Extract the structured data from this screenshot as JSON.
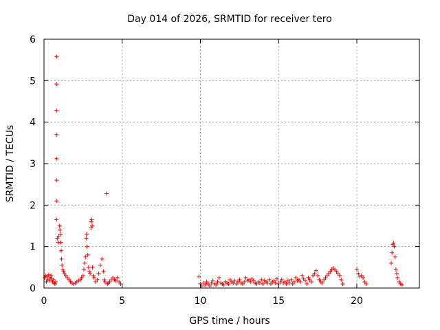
{
  "chart_data": {
    "type": "scatter",
    "title": "Day 014 of 2026, SRMTID for receiver tero",
    "xlabel": "GPS time / hours",
    "ylabel": "SRMTID / TECUs",
    "xlim": [
      0,
      24
    ],
    "ylim": [
      0,
      6
    ],
    "xticks": [
      0,
      5,
      10,
      15,
      20
    ],
    "xtick_labels": [
      "0",
      "5",
      "10",
      "15",
      "20"
    ],
    "yticks": [
      0,
      1,
      2,
      3,
      4,
      5,
      6
    ],
    "ytick_labels": [
      "0",
      "1",
      "2",
      "3",
      "4",
      "5",
      "6"
    ],
    "grid": true,
    "marker": "plus",
    "color": "#ff0000",
    "series": [
      {
        "name": "SRMTID",
        "x": [
          0.05,
          0.1,
          0.15,
          0.2,
          0.25,
          0.3,
          0.35,
          0.4,
          0.45,
          0.5,
          0.55,
          0.6,
          0.65,
          0.7,
          0.75,
          0.8,
          0.8,
          0.8,
          0.8,
          0.8,
          0.8,
          0.8,
          0.8,
          0.85,
          0.9,
          0.95,
          1.0,
          1.02,
          1.05,
          1.08,
          1.1,
          1.12,
          1.15,
          1.2,
          1.25,
          1.3,
          1.4,
          1.5,
          1.6,
          1.7,
          1.8,
          1.9,
          2.0,
          2.1,
          2.2,
          2.3,
          2.4,
          2.5,
          2.55,
          2.6,
          2.65,
          2.7,
          2.72,
          2.75,
          2.8,
          2.85,
          2.9,
          2.95,
          3.0,
          3.02,
          3.05,
          3.08,
          3.1,
          3.15,
          3.2,
          3.3,
          3.4,
          3.5,
          3.6,
          3.7,
          3.8,
          3.85,
          3.9,
          4.0,
          4.05,
          4.1,
          4.2,
          4.3,
          4.4,
          4.5,
          4.6,
          4.7,
          4.8,
          4.9,
          9.9,
          10.0,
          10.1,
          10.2,
          10.3,
          10.4,
          10.5,
          10.6,
          10.7,
          10.8,
          10.9,
          11.0,
          11.1,
          11.2,
          11.3,
          11.4,
          11.5,
          11.6,
          11.7,
          11.8,
          11.9,
          12.0,
          12.1,
          12.2,
          12.3,
          12.4,
          12.5,
          12.6,
          12.7,
          12.8,
          12.9,
          13.0,
          13.1,
          13.2,
          13.3,
          13.4,
          13.5,
          13.6,
          13.7,
          13.8,
          13.9,
          14.0,
          14.1,
          14.2,
          14.3,
          14.4,
          14.5,
          14.6,
          14.7,
          14.8,
          14.9,
          15.0,
          15.1,
          15.2,
          15.3,
          15.4,
          15.5,
          15.6,
          15.7,
          15.8,
          15.9,
          16.0,
          16.1,
          16.2,
          16.3,
          16.4,
          16.5,
          16.6,
          16.7,
          16.8,
          16.9,
          17.0,
          17.1,
          17.2,
          17.3,
          17.4,
          17.5,
          17.6,
          17.7,
          17.8,
          17.9,
          18.0,
          18.1,
          18.2,
          18.3,
          18.4,
          18.5,
          18.6,
          18.7,
          18.8,
          18.9,
          19.0,
          19.1,
          20.0,
          20.1,
          20.2,
          20.3,
          20.4,
          20.5,
          20.6,
          22.2,
          22.25,
          22.3,
          22.35,
          22.4,
          22.45,
          22.5,
          22.55,
          22.6,
          22.7,
          22.8,
          22.9
        ],
        "y": [
          0.25,
          0.3,
          0.15,
          0.28,
          0.2,
          0.32,
          0.18,
          0.25,
          0.3,
          0.22,
          0.15,
          0.2,
          0.12,
          0.1,
          0.15,
          5.58,
          4.92,
          4.28,
          3.7,
          3.12,
          2.6,
          2.1,
          1.65,
          1.2,
          1.1,
          1.25,
          1.5,
          1.4,
          1.3,
          1.1,
          0.9,
          0.7,
          0.55,
          0.45,
          0.4,
          0.35,
          0.3,
          0.25,
          0.2,
          0.15,
          0.12,
          0.1,
          0.12,
          0.15,
          0.18,
          0.2,
          0.25,
          0.3,
          0.45,
          0.6,
          0.75,
          1.2,
          1.3,
          1.0,
          0.8,
          0.5,
          0.4,
          0.35,
          1.45,
          1.6,
          1.65,
          1.5,
          0.5,
          0.3,
          0.25,
          0.15,
          0.2,
          0.35,
          0.55,
          0.7,
          0.4,
          0.2,
          0.15,
          2.28,
          0.1,
          0.12,
          0.15,
          0.2,
          0.25,
          0.2,
          0.18,
          0.25,
          0.15,
          0.1,
          0.28,
          0.1,
          0.05,
          0.12,
          0.08,
          0.15,
          0.1,
          0.05,
          0.12,
          0.18,
          0.1,
          0.08,
          0.15,
          0.25,
          0.12,
          0.1,
          0.08,
          0.15,
          0.12,
          0.1,
          0.2,
          0.15,
          0.12,
          0.18,
          0.1,
          0.15,
          0.2,
          0.12,
          0.1,
          0.15,
          0.25,
          0.18,
          0.2,
          0.15,
          0.22,
          0.18,
          0.12,
          0.1,
          0.15,
          0.12,
          0.2,
          0.1,
          0.18,
          0.15,
          0.12,
          0.2,
          0.1,
          0.15,
          0.18,
          0.12,
          0.22,
          0.1,
          0.15,
          0.2,
          0.12,
          0.15,
          0.1,
          0.18,
          0.12,
          0.2,
          0.1,
          0.15,
          0.25,
          0.18,
          0.2,
          0.15,
          0.3,
          0.22,
          0.18,
          0.1,
          0.25,
          0.2,
          0.15,
          0.3,
          0.35,
          0.42,
          0.3,
          0.2,
          0.15,
          0.12,
          0.2,
          0.25,
          0.3,
          0.35,
          0.4,
          0.45,
          0.48,
          0.44,
          0.4,
          0.35,
          0.3,
          0.2,
          0.1,
          0.45,
          0.35,
          0.28,
          0.3,
          0.25,
          0.15,
          0.1,
          0.6,
          0.85,
          1.05,
          1.08,
          1.0,
          0.75,
          0.45,
          0.35,
          0.25,
          0.15,
          0.1,
          0.08
        ]
      }
    ]
  }
}
